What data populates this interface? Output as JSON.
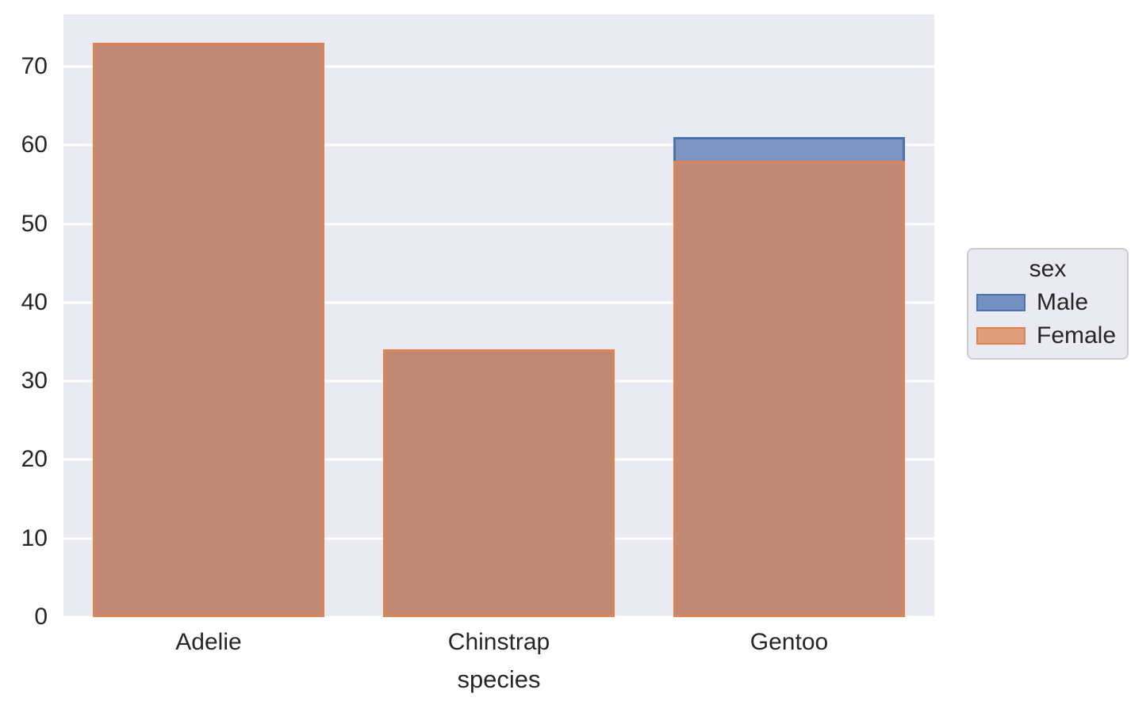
{
  "chart_data": {
    "type": "bar",
    "title": "",
    "categories": [
      "Adelie",
      "Chinstrap",
      "Gentoo"
    ],
    "series": [
      {
        "name": "Male",
        "values": [
          73,
          34,
          61
        ],
        "fill": "#7b94c2",
        "edge": "#4c72b0",
        "legend_fill": "#7390c0"
      },
      {
        "name": "Female",
        "values": [
          73,
          34,
          58
        ],
        "fill": "#c18873",
        "edge": "#dd8452",
        "legend_fill": "#e09d7a"
      }
    ],
    "xlabel": "species",
    "ylabel": "",
    "ylim": [
      0,
      76.65
    ],
    "yticks": [
      0,
      10,
      20,
      30,
      40,
      50,
      60,
      70
    ],
    "grid": true,
    "legend": {
      "title": "sex",
      "entries": [
        "Male",
        "Female"
      ],
      "position": "right-outside"
    },
    "layout_notes": "overlapping (layered) bars: Male drawn behind Female"
  },
  "colors": {
    "figure_bg": "#ffffff",
    "axes_bg": "#eaeaf2",
    "gridline": "#ffffff",
    "text": "#262626",
    "legend_bg": "#eaeaf2",
    "legend_border": "#cccccc"
  }
}
